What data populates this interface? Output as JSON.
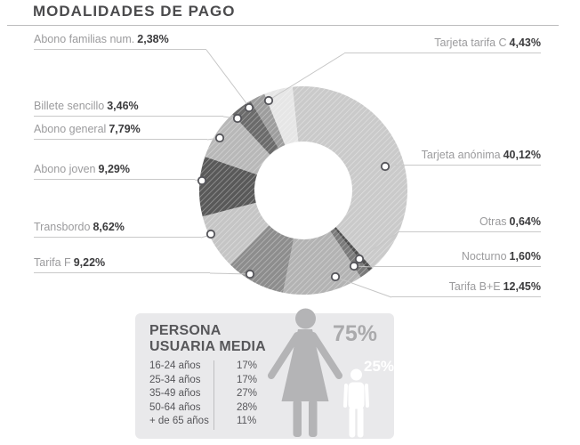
{
  "header": {
    "title": "MODALIDADES DE PAGO"
  },
  "chart_data": [
    {
      "type": "donut",
      "title": "MODALIDADES DE PAGO",
      "unit": "percent",
      "direction": "clockwise",
      "start_angle_deg": -6,
      "segments": [
        {
          "label": "Tarjeta anónima",
          "value": 40.12,
          "pct_label": "40,12%",
          "color": "#cacaca"
        },
        {
          "label": "Otras",
          "value": 0.64,
          "pct_label": "0,64%",
          "color": "#4f4f4f"
        },
        {
          "label": "Nocturno",
          "value": 1.6,
          "pct_label": "1,60%",
          "color": "#7a7a7a"
        },
        {
          "label": "Tarifa B+E",
          "value": 12.45,
          "pct_label": "12,45%",
          "color": "#b3b3b3"
        },
        {
          "label": "Tarifa F",
          "value": 9.22,
          "pct_label": "9,22%",
          "color": "#8d8d8d"
        },
        {
          "label": "Transbordo",
          "value": 8.62,
          "pct_label": "8,62%",
          "color": "#c5c5c5"
        },
        {
          "label": "Abono joven",
          "value": 9.29,
          "pct_label": "9,29%",
          "color": "#595959"
        },
        {
          "label": "Abono general",
          "value": 7.79,
          "pct_label": "7,79%",
          "color": "#b8b8b8"
        },
        {
          "label": "Billete sencillo",
          "value": 3.46,
          "pct_label": "3,46%",
          "color": "#6b6b6b"
        },
        {
          "label": "Abono familias num.",
          "value": 2.38,
          "pct_label": "2,38%",
          "color": "#9d9d9d"
        },
        {
          "label": "Tarjeta tarifa C",
          "value": 4.43,
          "pct_label": "4,43%",
          "color": "#e6e6e6"
        }
      ]
    },
    {
      "type": "table",
      "title": "PERSONA USUARIA MEDIA",
      "title_line1": "PERSONA",
      "title_line2": "USUARIA MEDIA",
      "categories": [
        "16-24 años",
        "25-34 años",
        "35-49 años",
        "50-64 años",
        "+ de 65 años"
      ],
      "values": [
        17,
        17,
        27,
        28,
        11
      ],
      "rows": [
        {
          "age": "16-24 años",
          "pct": "17%"
        },
        {
          "age": "25-34 años",
          "pct": "17%"
        },
        {
          "age": "35-49 años",
          "pct": "27%"
        },
        {
          "age": "50-64 años",
          "pct": "28%"
        },
        {
          "age": "+ de 65 años",
          "pct": "11%"
        }
      ],
      "gender_split": {
        "female": 75,
        "male": 25,
        "female_label": "75%",
        "male_label": "25%"
      }
    }
  ],
  "colors": {
    "background": "#ffffff",
    "title_text": "#4b4b4d",
    "label_text": "#9b9b9d",
    "value_text": "#3b3b3d",
    "underline": "#c9c9c9",
    "leader_line": "#c6c6c6",
    "marker_stroke": "#55555a",
    "panel_bg": "#e9e9eb",
    "panel_text": "#57575a",
    "female_icon": "#b4b4b6",
    "male_icon": "#ffffff",
    "female_pct_text": "#aaaaac"
  }
}
